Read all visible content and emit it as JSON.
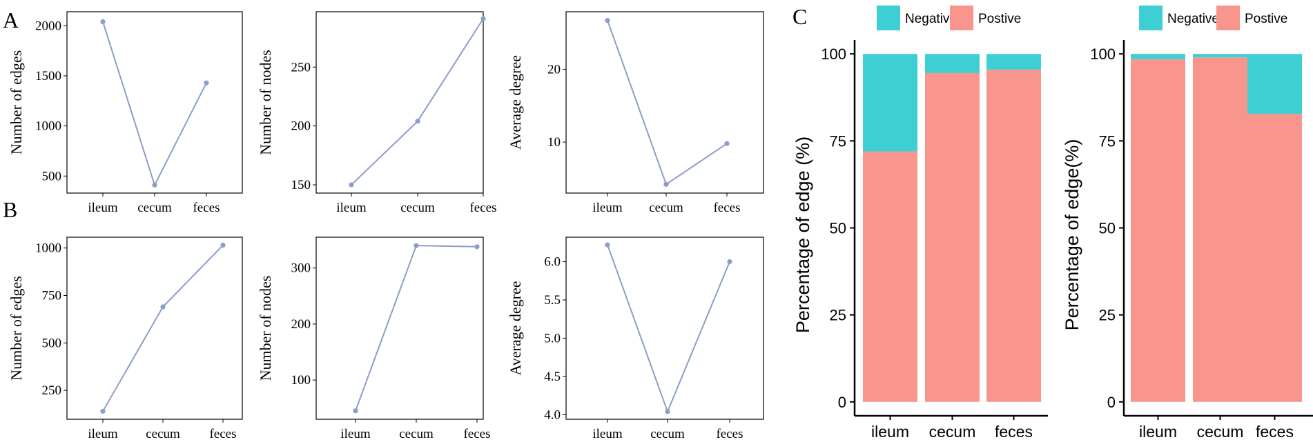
{
  "colors": {
    "line": "#8B9DC8",
    "negative": "#3ECFD4",
    "positive": "#F8968E",
    "axis": "#000000"
  },
  "panels": {
    "A": "A",
    "B": "B",
    "C": "C"
  },
  "chart_data": [
    {
      "id": "A1",
      "type": "line",
      "categories": [
        "ileum",
        "cecum",
        "feces"
      ],
      "values": [
        2040,
        410,
        1430
      ],
      "ylabel": "Number of edges",
      "ylim": [
        330,
        2140
      ],
      "yticks": [
        500,
        1000,
        1500,
        2000
      ],
      "ytick_labels": [
        "500",
        "1000",
        "1500",
        "2000"
      ]
    },
    {
      "id": "A2",
      "type": "line",
      "categories": [
        "ileum",
        "cecum",
        "feces"
      ],
      "values": [
        150,
        204,
        291
      ],
      "ylabel": "Number of nodes",
      "ylim": [
        143,
        297
      ],
      "yticks": [
        150,
        200,
        250
      ],
      "ytick_labels": [
        "150",
        "200",
        "250"
      ]
    },
    {
      "id": "A3",
      "type": "line",
      "categories": [
        "ileum",
        "cecum",
        "feces"
      ],
      "values": [
        26.7,
        4.2,
        9.8
      ],
      "ylabel": "Average degree",
      "ylim": [
        3.0,
        27.9
      ],
      "yticks": [
        10,
        20
      ],
      "ytick_labels": [
        "10",
        "20"
      ]
    },
    {
      "id": "B1",
      "type": "line",
      "categories": [
        "ileum",
        "cecum",
        "feces"
      ],
      "values": [
        140,
        690,
        1015
      ],
      "ylabel": "Number of edges",
      "ylim": [
        98,
        1057
      ],
      "yticks": [
        250,
        500,
        750,
        1000
      ],
      "ytick_labels": [
        "250",
        "500",
        "750",
        "1000"
      ]
    },
    {
      "id": "B2",
      "type": "line",
      "categories": [
        "ileum",
        "cecum",
        "feces"
      ],
      "values": [
        45,
        340,
        338
      ],
      "ylabel": "Number of nodes",
      "ylim": [
        30,
        355
      ],
      "yticks": [
        100,
        200,
        300
      ],
      "ytick_labels": [
        "100",
        "200",
        "300"
      ]
    },
    {
      "id": "B3",
      "type": "line",
      "categories": [
        "ileum",
        "cecum",
        "feces"
      ],
      "values": [
        6.22,
        4.04,
        6.0
      ],
      "ylabel": "Average degree",
      "ylim": [
        3.94,
        6.32
      ],
      "yticks": [
        4.0,
        4.5,
        5.0,
        5.5,
        6.0
      ],
      "ytick_labels": [
        "4.0",
        "4.5",
        "5.0",
        "5.5",
        "6.0"
      ]
    },
    {
      "id": "C1",
      "type": "bar",
      "stacked": true,
      "categories": [
        "ileum",
        "cecum",
        "feces"
      ],
      "series": [
        {
          "name": "Postive",
          "values": [
            72,
            94.5,
            95.5
          ]
        },
        {
          "name": "Negative",
          "values": [
            28,
            5.5,
            4.5
          ]
        }
      ],
      "legend": [
        "Negative",
        "Postive"
      ],
      "ylabel": "Percentage of edge (%)",
      "ylim": [
        -4,
        104
      ],
      "yticks": [
        0,
        25,
        50,
        75,
        100
      ],
      "ytick_labels": [
        "0",
        "25",
        "50",
        "75",
        "100"
      ]
    },
    {
      "id": "C2",
      "type": "bar",
      "stacked": true,
      "categories": [
        "ileum",
        "cecum",
        "feces"
      ],
      "series": [
        {
          "name": "Postive",
          "values": [
            98.5,
            99,
            82.8
          ]
        },
        {
          "name": "Negative",
          "values": [
            1.5,
            1,
            17.2
          ]
        }
      ],
      "legend": [
        "Negative",
        "Postive"
      ],
      "ylabel": "Percentage  of edge(%)",
      "ylim": [
        -4,
        104
      ],
      "yticks": [
        0,
        25,
        50,
        75,
        100
      ],
      "ytick_labels": [
        "0",
        "25",
        "50",
        "75",
        "100"
      ]
    }
  ]
}
